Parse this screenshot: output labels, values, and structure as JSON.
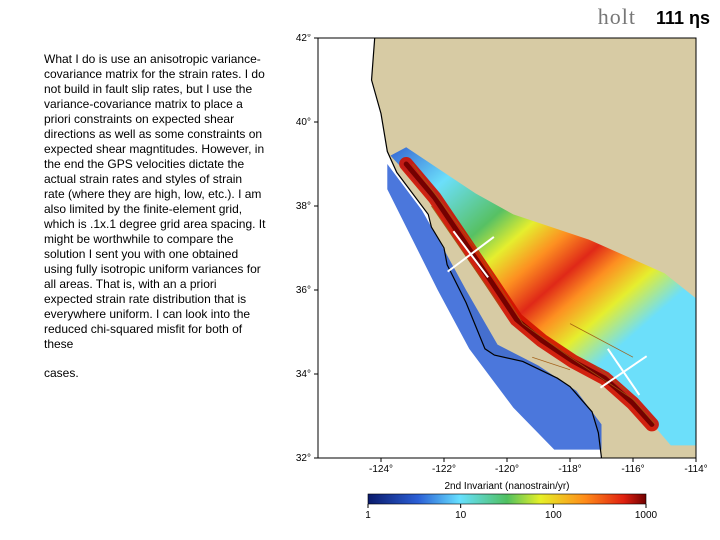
{
  "header": {
    "brand": "holt",
    "count_label": "111 ηs"
  },
  "text": {
    "para1": "What I do is use an anisotropic variance-covariance matrix for the strain rates. I do not build in fault slip rates, but I use the variance-covariance matrix to place a priori constraints on expected shear directions as well as some constraints on expected shear magntitudes. However, in the end the GPS velocities dictate the actual strain rates and styles of strain rate (where they are high, low, etc.). I am also limited by the finite-element grid, which is .1x.1 degree grid area spacing. It might be worthwhile to compare the solution I sent you with one obtained using fully isotropic uniform variances for all areas. That is, with an a priori expected strain rate distribution that is everywhere uniform. I can look into the reduced chi-squared misfit for both of these",
    "para2": "cases."
  },
  "map": {
    "type": "map-heatmap",
    "background_color": "#ffffff",
    "land_color": "#d7cba4",
    "ocean_color": "#ffffff",
    "coast_color": "#000000",
    "fault_color": "#a05a10",
    "lat": {
      "min": 32,
      "max": 42,
      "ticks": [
        32,
        34,
        36,
        38,
        40,
        42
      ]
    },
    "lon": {
      "min": -126,
      "max": -114,
      "ticks": [
        -124,
        -122,
        -120,
        -118,
        -116,
        -114
      ]
    },
    "colorbar": {
      "title": "2nd Invariant (nanostrain/yr)",
      "scale": "log",
      "ticks": [
        1,
        10,
        100,
        1000
      ],
      "stops": [
        {
          "t": 0.0,
          "c": "#0a1a6b"
        },
        {
          "t": 0.18,
          "c": "#2b5fd6"
        },
        {
          "t": 0.33,
          "c": "#66e0ff"
        },
        {
          "t": 0.5,
          "c": "#50c060"
        },
        {
          "t": 0.62,
          "c": "#e6f028"
        },
        {
          "t": 0.78,
          "c": "#ff8c1a"
        },
        {
          "t": 0.92,
          "c": "#e02010"
        },
        {
          "t": 1.0,
          "c": "#700000"
        }
      ]
    },
    "xcuts": [
      {
        "lon1": -121.7,
        "lat1": 37.4,
        "lon2": -120.6,
        "lat2": 36.3
      },
      {
        "lon1": -116.8,
        "lat1": 34.6,
        "lon2": -115.8,
        "lat2": 33.5
      }
    ]
  }
}
